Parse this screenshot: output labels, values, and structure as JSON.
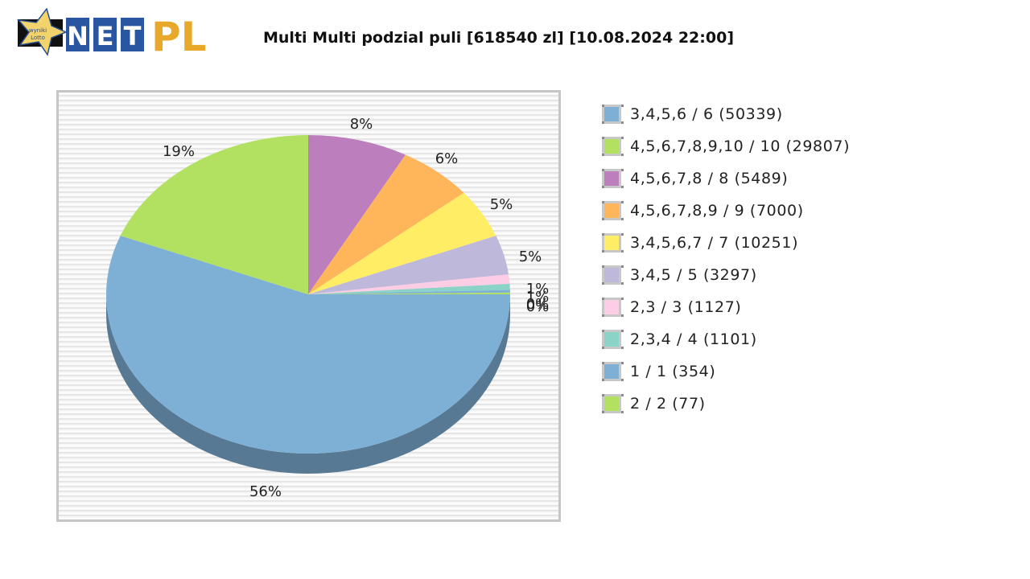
{
  "header": {
    "logo": {
      "star_text": [
        "wyniki",
        "Lotto"
      ],
      "net_letters": [
        "N",
        "E",
        "T"
      ],
      "pl_text": "PL"
    },
    "title": "Multi Multi podzial puli [618540 zl] [10.08.2024 22:00]"
  },
  "chart_data": {
    "type": "pie",
    "title": "Multi Multi podzial puli [618540 zl] [10.08.2024 22:00]",
    "style": "3d",
    "legend_position": "right",
    "categories": [
      "3,4,5,6 / 6",
      "4,5,6,7,8,9,10 / 10",
      "4,5,6,7,8 / 8",
      "4,5,6,7,8,9 / 9",
      "3,4,5,6,7 / 7",
      "3,4,5 / 5",
      "2,3 / 3",
      "2,3,4 / 4",
      "1 / 1",
      "2 / 2"
    ],
    "values": [
      50339,
      29807,
      5489,
      7000,
      10251,
      3297,
      1127,
      1101,
      354,
      77
    ],
    "percent_labels": [
      "56%",
      "19%",
      "8%",
      "6%",
      "5%",
      "5%",
      "1%",
      "1%",
      "0%",
      "0%"
    ],
    "legend_labels": [
      "3,4,5,6 / 6 (50339)",
      "4,5,6,7,8,9,10 / 10 (29807)",
      "4,5,6,7,8 / 8 (5489)",
      "4,5,6,7,8,9 / 9 (7000)",
      "3,4,5,6,7 / 7 (10251)",
      "3,4,5 / 5 (3297)",
      "2,3 / 3 (1127)",
      "2,3,4 / 4 (1101)",
      "1 / 1 (354)",
      "2 / 2 (77)"
    ],
    "colors": [
      "#7eb0d6",
      "#b2e061",
      "#bd7ebe",
      "#ffb55a",
      "#ffee65",
      "#beb9db",
      "#fdcce5",
      "#8bd3c7",
      "#7eb0d6",
      "#b2e061"
    ],
    "sweep_degrees": [
      201.6,
      68.4,
      28.8,
      21.6,
      18.0,
      14.4,
      3.4,
      2.2,
      1.0,
      0.6
    ]
  },
  "legend": {
    "items": [
      {
        "label": "3,4,5,6 / 6 (50339)",
        "color": "#7eb0d6"
      },
      {
        "label": "4,5,6,7,8,9,10 / 10 (29807)",
        "color": "#b2e061"
      },
      {
        "label": "4,5,6,7,8 / 8 (5489)",
        "color": "#bd7ebe"
      },
      {
        "label": "4,5,6,7,8,9 / 9 (7000)",
        "color": "#ffb55a"
      },
      {
        "label": "3,4,5,6,7 / 7 (10251)",
        "color": "#ffee65"
      },
      {
        "label": "3,4,5 / 5 (3297)",
        "color": "#beb9db"
      },
      {
        "label": "2,3 / 3 (1127)",
        "color": "#fdcce5"
      },
      {
        "label": "2,3,4 / 4 (1101)",
        "color": "#8bd3c7"
      },
      {
        "label": "1 / 1 (354)",
        "color": "#7eb0d6"
      },
      {
        "label": "2 / 2 (77)",
        "color": "#b2e061"
      }
    ]
  }
}
